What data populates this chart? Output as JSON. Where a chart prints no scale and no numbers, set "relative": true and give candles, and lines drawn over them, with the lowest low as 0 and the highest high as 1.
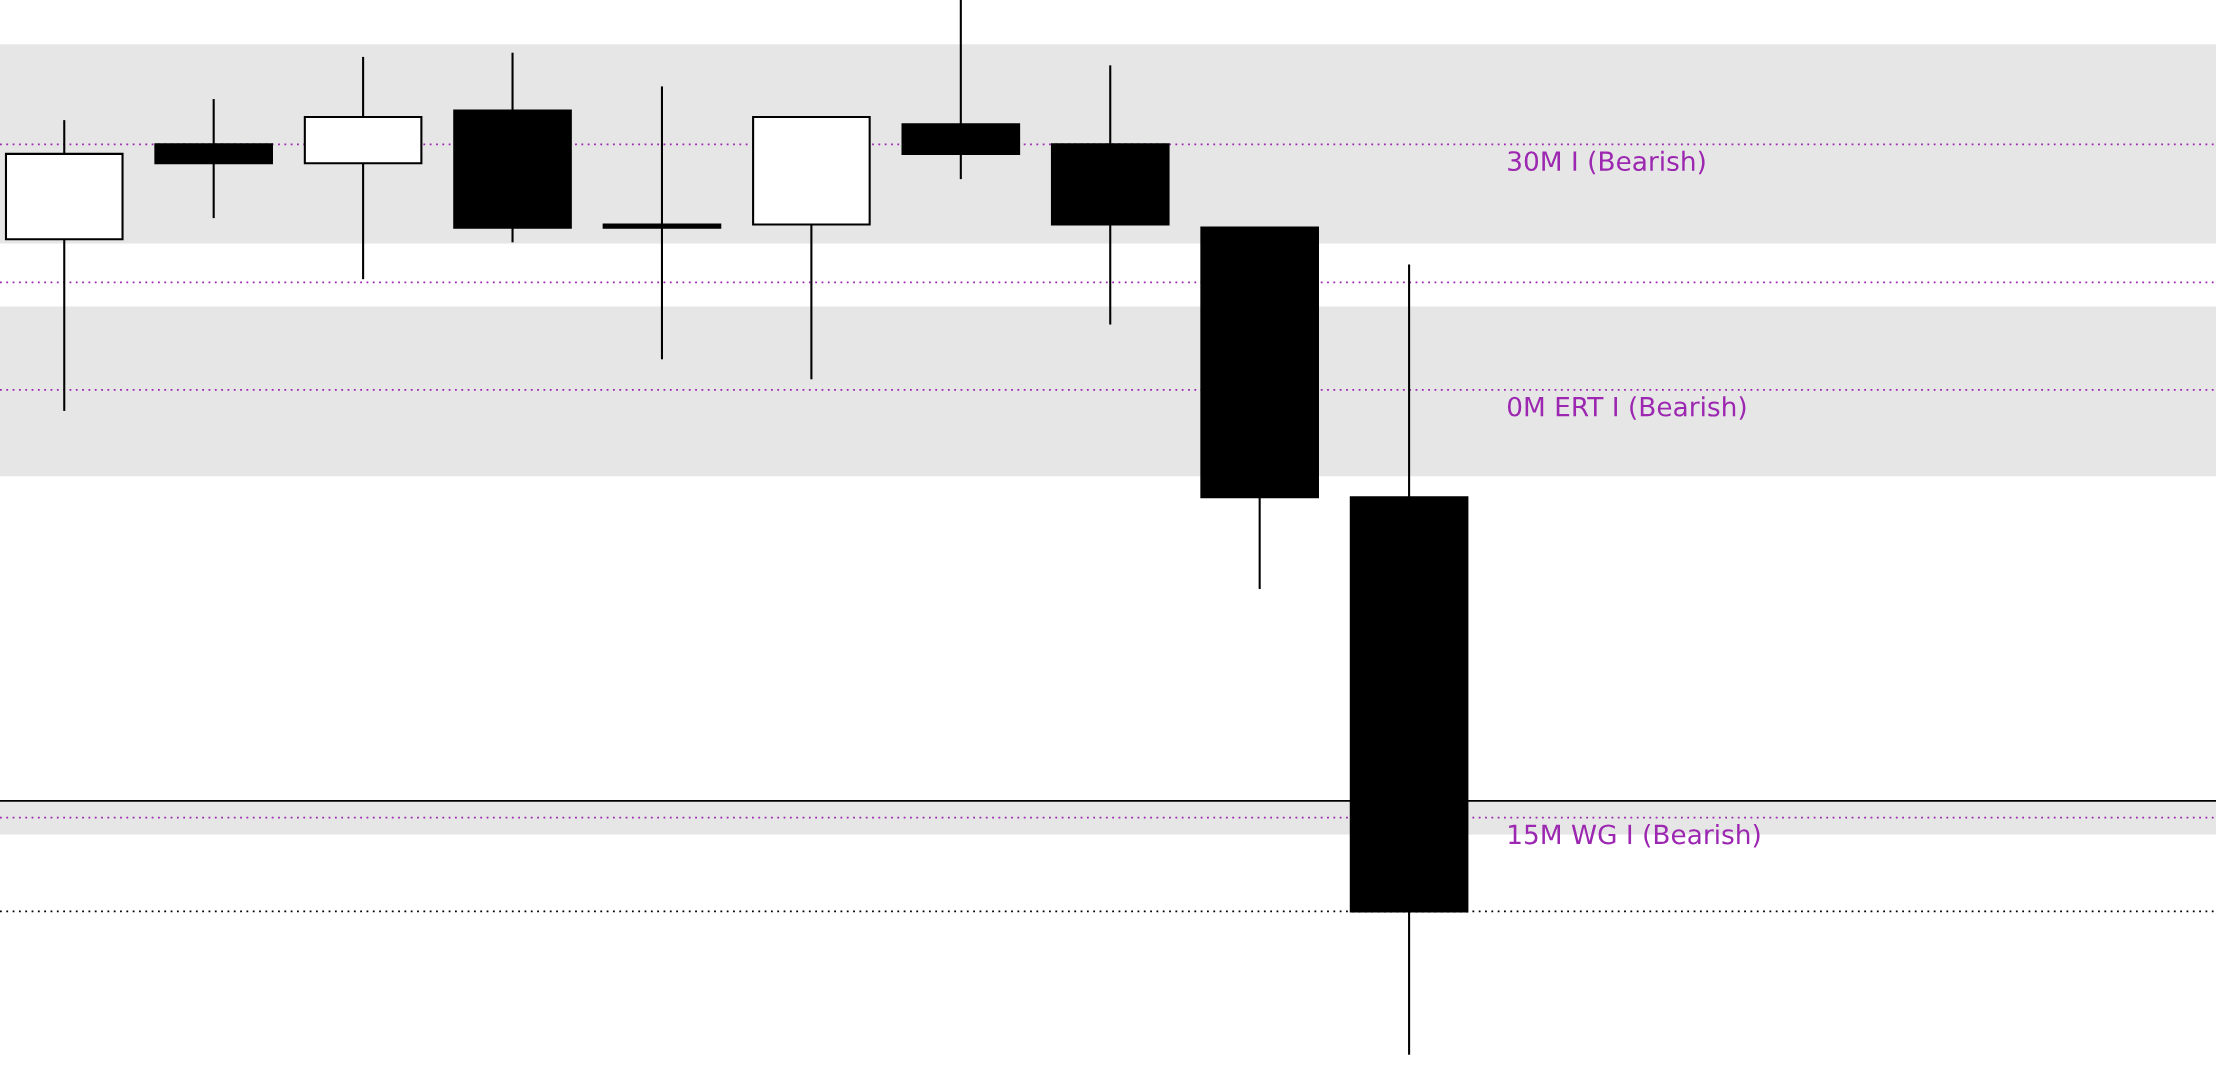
{
  "chart_data": {
    "type": "candlestick",
    "relative": true,
    "categories": [
      null,
      null,
      null,
      null,
      null,
      null,
      null,
      null,
      null,
      null
    ],
    "ohlc": [
      [
        0.773,
        0.885,
        0.611,
        0.854
      ],
      [
        0.863,
        0.905,
        0.794,
        0.845
      ],
      [
        0.845,
        0.945,
        0.736,
        0.889
      ],
      [
        0.895,
        0.949,
        0.771,
        0.784
      ],
      [
        0.787,
        0.917,
        0.66,
        0.784
      ],
      [
        0.787,
        0.889,
        0.641,
        0.889
      ],
      [
        0.882,
        1,
        0.831,
        0.854
      ],
      [
        0.863,
        0.937,
        0.693,
        0.787
      ],
      [
        0.784,
        0.784,
        0.442,
        0.528
      ],
      [
        0.528,
        0.748,
        0,
        0.135
      ]
    ],
    "grid": false,
    "legend": false,
    "bands": [
      {
        "axis": "y",
        "from": 0.769,
        "to": 0.958,
        "color": "#e6e6e6"
      },
      {
        "axis": "y",
        "from": 0.548,
        "to": 0.709,
        "color": "#e6e6e6"
      },
      {
        "axis": "y",
        "from": 0.208,
        "to": 0.24,
        "color": "#e6e6e6"
      }
    ],
    "ref_lines": [
      {
        "axis": "y",
        "value": 0.863,
        "label": "30M I (Bearish)",
        "color": "#9c27b0",
        "line_style": "dotted"
      },
      {
        "axis": "y",
        "value": 0.63,
        "label": "0M ERT I (Bearish)",
        "color": "#9c27b0",
        "line_style": "dotted"
      },
      {
        "axis": "y",
        "value": 0.732,
        "label": null,
        "color": "#9c27b0",
        "line_style": "dotted"
      },
      {
        "axis": "y",
        "value": 0.224,
        "label": "15M WG I (Bearish)",
        "color": "#9c27b0",
        "line_style": "dotted"
      },
      {
        "axis": "y",
        "value": 0.24,
        "label": null,
        "color": "#000000",
        "line_style": "solid"
      },
      {
        "axis": "y",
        "value": 0.135,
        "label": null,
        "color": "#000000",
        "line_style": "dotted"
      }
    ]
  }
}
